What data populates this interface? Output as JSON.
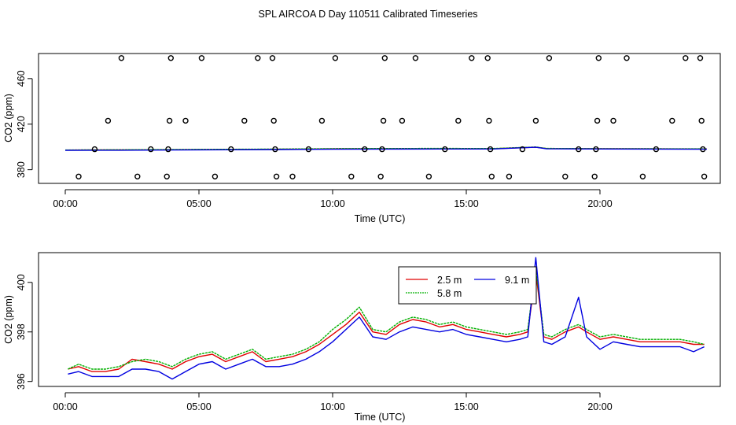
{
  "page_title": "SPL AIRCOA D  Day 110511  Calibrated Timeseries",
  "colors": {
    "red": "#e00000",
    "green": "#00b000",
    "blue": "#0000e0",
    "axis": "#000000"
  },
  "chart_data": [
    {
      "type": "scatter",
      "title": "",
      "xlabel": "Time (UTC)",
      "ylabel": "CO2 (ppm)",
      "xlim": [
        -1,
        24.5
      ],
      "ylim": [
        368,
        482
      ],
      "x_ticks": [
        0,
        5,
        10,
        15,
        20
      ],
      "x_tick_labels": [
        "00:00",
        "05:00",
        "10:00",
        "15:00",
        "20:00"
      ],
      "y_ticks": [
        380,
        420,
        460
      ],
      "y_tick_labels": [
        "380",
        "420",
        "460"
      ],
      "points": [
        [
          0.5,
          374
        ],
        [
          1.1,
          398
        ],
        [
          1.6,
          423
        ],
        [
          2.1,
          478
        ],
        [
          2.7,
          374
        ],
        [
          3.2,
          398
        ],
        [
          3.8,
          374
        ],
        [
          3.85,
          398
        ],
        [
          3.9,
          423
        ],
        [
          3.95,
          478
        ],
        [
          4.5,
          423
        ],
        [
          5.1,
          478
        ],
        [
          5.6,
          374
        ],
        [
          6.2,
          398
        ],
        [
          6.7,
          423
        ],
        [
          7.2,
          478
        ],
        [
          7.75,
          478
        ],
        [
          7.8,
          423
        ],
        [
          7.85,
          398
        ],
        [
          7.9,
          374
        ],
        [
          8.5,
          374
        ],
        [
          9.1,
          398
        ],
        [
          9.6,
          423
        ],
        [
          10.1,
          478
        ],
        [
          10.7,
          374
        ],
        [
          11.2,
          398
        ],
        [
          11.8,
          374
        ],
        [
          11.85,
          398
        ],
        [
          11.9,
          423
        ],
        [
          11.95,
          478
        ],
        [
          12.6,
          423
        ],
        [
          13.1,
          478
        ],
        [
          13.6,
          374
        ],
        [
          14.2,
          398
        ],
        [
          14.7,
          423
        ],
        [
          15.2,
          478
        ],
        [
          15.8,
          478
        ],
        [
          15.85,
          423
        ],
        [
          15.9,
          398
        ],
        [
          15.95,
          374
        ],
        [
          16.6,
          374
        ],
        [
          17.1,
          398
        ],
        [
          17.6,
          423
        ],
        [
          18.1,
          478
        ],
        [
          18.7,
          374
        ],
        [
          19.2,
          398
        ],
        [
          19.8,
          374
        ],
        [
          19.85,
          398
        ],
        [
          19.9,
          423
        ],
        [
          19.95,
          478
        ],
        [
          20.5,
          423
        ],
        [
          21.0,
          478
        ],
        [
          21.6,
          374
        ],
        [
          22.1,
          398
        ],
        [
          22.7,
          423
        ],
        [
          23.2,
          478
        ],
        [
          23.75,
          478
        ],
        [
          23.8,
          423
        ],
        [
          23.85,
          398
        ],
        [
          23.9,
          374
        ]
      ],
      "series": [
        {
          "name": "2.5 m",
          "color": "#e00000",
          "x": [
            0,
            2,
            4,
            6,
            8,
            10,
            12,
            14,
            16,
            17.6,
            18,
            20,
            22,
            24
          ],
          "values": [
            397.2,
            397.4,
            397.6,
            397.8,
            398.0,
            398.3,
            398.4,
            398.5,
            398.5,
            399.8,
            398.6,
            398.4,
            398.3,
            398.2
          ]
        },
        {
          "name": "5.8 m",
          "color": "#00b000",
          "x": [
            0,
            2,
            4,
            6,
            8,
            10,
            12,
            14,
            16,
            17.6,
            18,
            20,
            22,
            24
          ],
          "values": [
            397.3,
            397.5,
            397.7,
            397.9,
            398.1,
            398.5,
            398.6,
            398.7,
            398.6,
            399.9,
            398.7,
            398.5,
            398.4,
            398.3
          ]
        },
        {
          "name": "9.1 m",
          "color": "#0000e0",
          "x": [
            0,
            2,
            4,
            6,
            8,
            10,
            12,
            14,
            16,
            17.6,
            18,
            20,
            22,
            24
          ],
          "values": [
            397.0,
            397.1,
            397.3,
            397.5,
            397.7,
            398.0,
            398.1,
            398.2,
            398.2,
            399.7,
            398.3,
            398.2,
            398.1,
            398.0
          ]
        }
      ]
    },
    {
      "type": "line",
      "title": "",
      "xlabel": "Time (UTC)",
      "ylabel": "CO2 (ppm)",
      "xlim": [
        -1,
        24.5
      ],
      "ylim": [
        395.8,
        401.2
      ],
      "x_ticks": [
        0,
        5,
        10,
        15,
        20
      ],
      "x_tick_labels": [
        "00:00",
        "05:00",
        "10:00",
        "15:00",
        "20:00"
      ],
      "y_ticks": [
        396,
        398,
        400
      ],
      "y_tick_labels": [
        "396",
        "398",
        "400"
      ],
      "legend": {
        "position": "top-center",
        "entries": [
          "2.5 m",
          "5.8 m",
          "9.1 m"
        ]
      },
      "x": [
        0.1,
        0.5,
        1.0,
        1.5,
        2.0,
        2.5,
        3.0,
        3.5,
        4.0,
        4.5,
        5.0,
        5.5,
        6.0,
        6.5,
        7.0,
        7.5,
        8.0,
        8.5,
        9.0,
        9.5,
        10.0,
        10.5,
        11.0,
        11.5,
        12.0,
        12.5,
        13.0,
        13.5,
        14.0,
        14.5,
        15.0,
        15.5,
        16.0,
        16.5,
        17.0,
        17.3,
        17.6,
        17.9,
        18.2,
        18.7,
        19.2,
        19.5,
        20.0,
        20.5,
        21.0,
        21.5,
        22.0,
        22.5,
        23.0,
        23.5,
        23.9
      ],
      "series": [
        {
          "name": "2.5 m",
          "color": "#e00000",
          "values": [
            396.5,
            396.6,
            396.4,
            396.4,
            396.5,
            396.9,
            396.8,
            396.7,
            396.5,
            396.8,
            397.0,
            397.1,
            396.8,
            397.0,
            397.2,
            396.8,
            396.9,
            397.0,
            397.2,
            397.5,
            397.9,
            398.3,
            398.8,
            398.0,
            397.9,
            398.3,
            398.5,
            398.4,
            398.2,
            398.3,
            398.1,
            398.0,
            397.9,
            397.8,
            397.9,
            398.0,
            400.4,
            397.8,
            397.7,
            398.0,
            398.2,
            398.0,
            397.7,
            397.8,
            397.7,
            397.6,
            397.6,
            397.6,
            397.6,
            397.5,
            397.5
          ]
        },
        {
          "name": "5.8 m",
          "color": "#00b000",
          "values": [
            396.5,
            396.7,
            396.5,
            396.5,
            396.6,
            396.8,
            396.9,
            396.8,
            396.6,
            396.9,
            397.1,
            397.2,
            396.9,
            397.1,
            397.3,
            396.9,
            397.0,
            397.1,
            397.3,
            397.6,
            398.1,
            398.5,
            399.0,
            398.1,
            398.0,
            398.4,
            398.6,
            398.5,
            398.3,
            398.4,
            398.2,
            398.1,
            398.0,
            397.9,
            398.0,
            398.1,
            400.6,
            397.9,
            397.8,
            398.1,
            398.3,
            398.1,
            397.8,
            397.9,
            397.8,
            397.7,
            397.7,
            397.7,
            397.7,
            397.6,
            397.5
          ]
        },
        {
          "name": "9.1 m",
          "color": "#0000e0",
          "values": [
            396.3,
            396.4,
            396.2,
            396.2,
            396.2,
            396.5,
            396.5,
            396.4,
            396.1,
            396.4,
            396.7,
            396.8,
            396.5,
            396.7,
            396.9,
            396.6,
            396.6,
            396.7,
            396.9,
            397.2,
            397.6,
            398.1,
            398.6,
            397.8,
            397.7,
            398.0,
            398.2,
            398.1,
            398.0,
            398.1,
            397.9,
            397.8,
            397.7,
            397.6,
            397.7,
            397.8,
            401.0,
            397.6,
            397.5,
            397.8,
            399.4,
            397.8,
            397.3,
            397.6,
            397.5,
            397.4,
            397.4,
            397.4,
            397.4,
            397.2,
            397.4
          ]
        }
      ]
    }
  ]
}
